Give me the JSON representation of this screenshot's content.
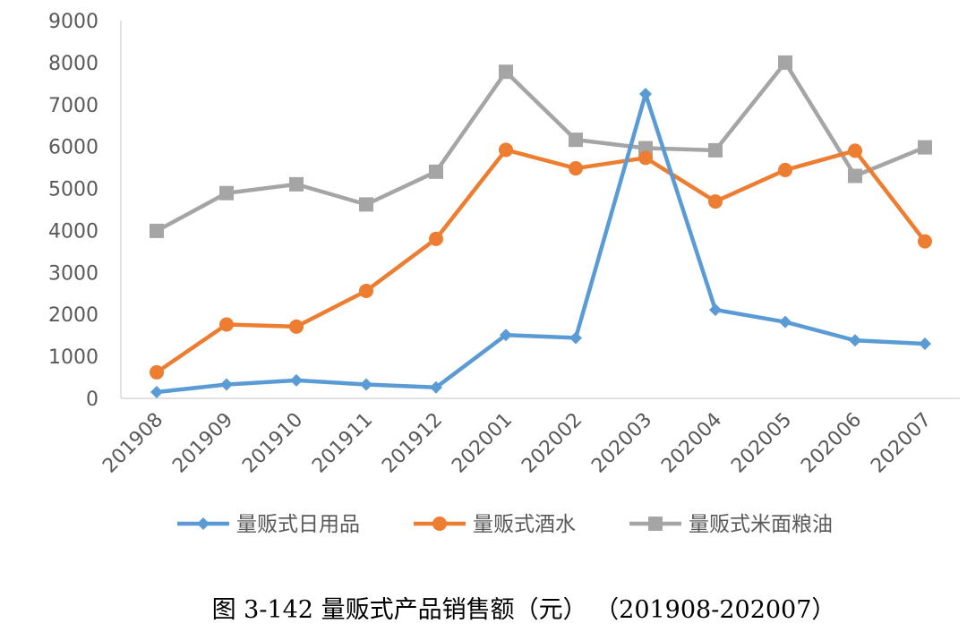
{
  "chart_data": {
    "type": "line",
    "title": "",
    "xlabel": "",
    "ylabel": "",
    "ylim": [
      0,
      9000
    ],
    "yticks": [
      0,
      1000,
      2000,
      3000,
      4000,
      5000,
      6000,
      7000,
      8000,
      9000
    ],
    "grid": false,
    "legend_position": "bottom",
    "categories": [
      "201908",
      "201909",
      "201910",
      "201911",
      "201912",
      "202001",
      "202002",
      "202003",
      "202004",
      "202005",
      "202006",
      "202007"
    ],
    "series": [
      {
        "name": "量贩式日用品",
        "color": "#5b9bd5",
        "marker": "diamond",
        "values": [
          150,
          330,
          430,
          330,
          260,
          1510,
          1440,
          7250,
          2110,
          1820,
          1380,
          1300
        ]
      },
      {
        "name": "量贩式酒水",
        "color": "#ed7d31",
        "marker": "circle",
        "values": [
          620,
          1760,
          1710,
          2560,
          3800,
          5920,
          5480,
          5730,
          4690,
          5440,
          5900,
          3740
        ]
      },
      {
        "name": "量贩式米面粮油",
        "color": "#a5a5a5",
        "marker": "square",
        "values": [
          3990,
          4890,
          5100,
          4620,
          5400,
          7780,
          6160,
          5960,
          5910,
          8000,
          5300,
          5980
        ]
      }
    ]
  },
  "caption": "图 3-142  量贩式产品销售额（元）  （201908-202007）"
}
